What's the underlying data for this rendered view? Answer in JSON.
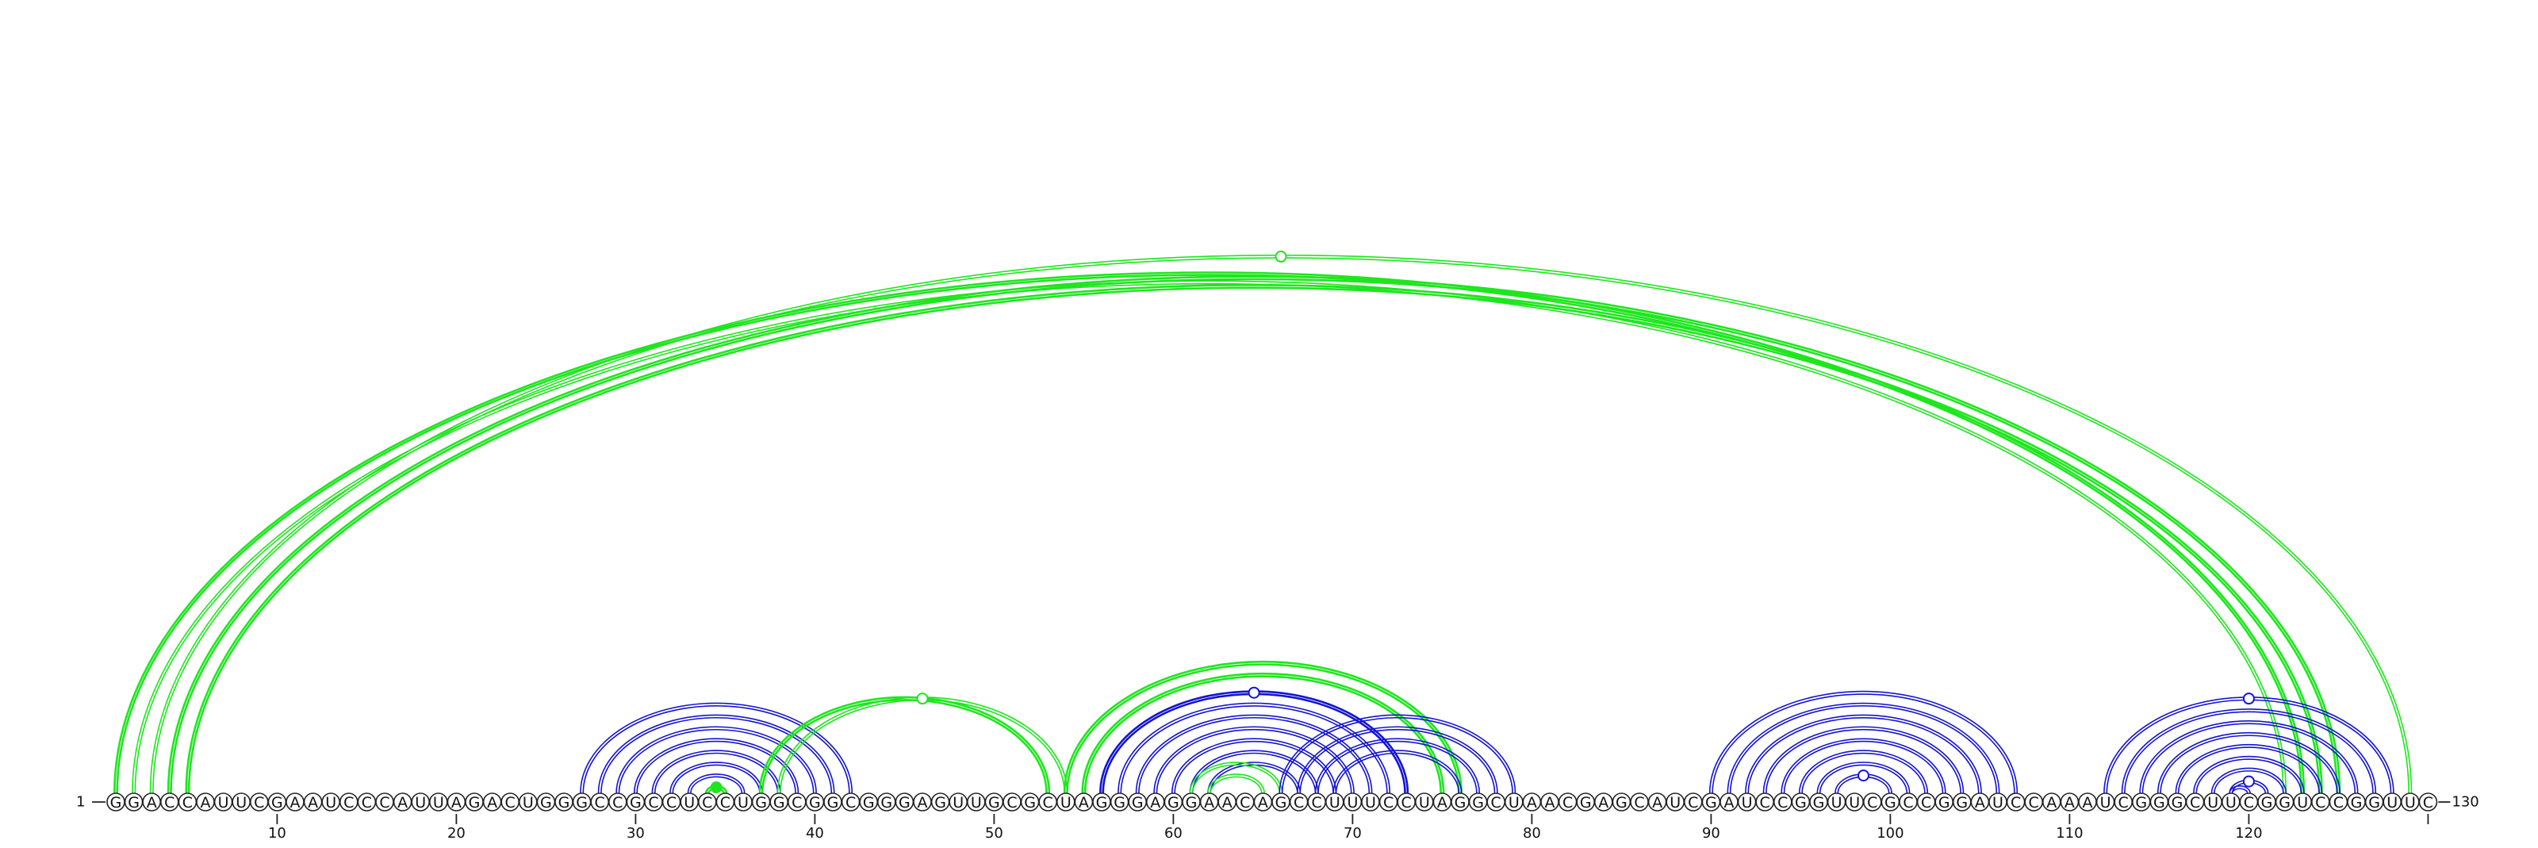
{
  "sequence": {
    "letters": "GGACCAUUCGAAUCCCAUUAGACUGGGCCGCCUCCUGGCGGCGGGAGUUGCGCUAGGGAGGAACAGCCUUUCCUAGGCUAACGAGCAUCGAUCCGGUUCGCCGGAUCCAAAUCGGGCUUCGGUCCGGUUC",
    "start_label": "1",
    "end_label": "130",
    "first_index": 1,
    "last_index": 130
  },
  "ticks": [
    {
      "index": 10,
      "label": "10"
    },
    {
      "index": 20,
      "label": "20"
    },
    {
      "index": 30,
      "label": "30"
    },
    {
      "index": 40,
      "label": "40"
    },
    {
      "index": 50,
      "label": "50"
    },
    {
      "index": 60,
      "label": "60"
    },
    {
      "index": 70,
      "label": "70"
    },
    {
      "index": 80,
      "label": "80"
    },
    {
      "index": 90,
      "label": "90"
    },
    {
      "index": 100,
      "label": "100"
    },
    {
      "index": 110,
      "label": "110"
    },
    {
      "index": 120,
      "label": "120"
    },
    {
      "index": 130,
      "label": ""
    }
  ],
  "colors": {
    "green": "#1ee61e",
    "blue": "#1414d2"
  },
  "arc_groups": [
    {
      "name": "long-range",
      "color": "green",
      "pairs": [
        [
          1,
          123
        ],
        [
          2,
          122
        ],
        [
          3,
          129
        ],
        [
          4,
          125
        ],
        [
          5,
          124
        ]
      ],
      "heavy": [
        0,
        3,
        4
      ],
      "marker": {
        "type": "open",
        "pair": 2
      }
    },
    {
      "name": "helix-a",
      "color": "blue",
      "pairs": [
        [
          27,
          42
        ],
        [
          28,
          41
        ],
        [
          29,
          40
        ],
        [
          30,
          39
        ],
        [
          31,
          38
        ],
        [
          32,
          37
        ],
        [
          33,
          36
        ]
      ],
      "heavy": [],
      "marker": null
    },
    {
      "name": "helix-a-inner",
      "color": "green",
      "pairs": [
        [
          34,
          35
        ]
      ],
      "heavy": [
        0
      ],
      "marker": {
        "type": "filled",
        "pair": 0
      }
    },
    {
      "name": "pseudoknot-a",
      "color": "green",
      "pairs": [
        [
          37,
          53
        ],
        [
          38,
          54
        ]
      ],
      "heavy": [
        0
      ],
      "marker": {
        "type": "open",
        "pair": 1
      }
    },
    {
      "name": "helix-b",
      "color": "blue",
      "pairs": [
        [
          56,
          73
        ],
        [
          57,
          72
        ],
        [
          58,
          71
        ],
        [
          59,
          70
        ],
        [
          60,
          69
        ],
        [
          61,
          68
        ],
        [
          62,
          67
        ]
      ],
      "heavy": [
        0
      ],
      "marker": {
        "type": "open",
        "pair": 0
      }
    },
    {
      "name": "pseudoknot-b",
      "color": "green",
      "pairs": [
        [
          54,
          76
        ],
        [
          55,
          75
        ],
        [
          61,
          66
        ],
        [
          62,
          65
        ]
      ],
      "heavy": [
        0,
        1
      ],
      "marker": null
    },
    {
      "name": "helix-c",
      "color": "blue",
      "pairs": [
        [
          66,
          79
        ],
        [
          67,
          78
        ],
        [
          68,
          77
        ],
        [
          69,
          76
        ]
      ],
      "heavy": [],
      "marker": null
    },
    {
      "name": "helix-d",
      "color": "blue",
      "pairs": [
        [
          90,
          107
        ],
        [
          91,
          106
        ],
        [
          92,
          105
        ],
        [
          93,
          104
        ],
        [
          94,
          103
        ],
        [
          95,
          102
        ],
        [
          96,
          101
        ],
        [
          97,
          100
        ]
      ],
      "heavy": [],
      "marker": {
        "type": "open",
        "pair": 7
      }
    },
    {
      "name": "helix-e",
      "color": "blue",
      "pairs": [
        [
          112,
          128
        ],
        [
          113,
          127
        ],
        [
          114,
          126
        ],
        [
          115,
          125
        ],
        [
          116,
          124
        ],
        [
          117,
          123
        ],
        [
          118,
          122
        ]
      ],
      "heavy": [],
      "marker": {
        "type": "open",
        "pair": 0
      }
    },
    {
      "name": "helix-e-inner",
      "color": "blue",
      "pairs": [
        [
          119,
          121
        ],
        [
          119,
          120
        ]
      ],
      "heavy": [],
      "marker": {
        "type": "open",
        "pair": 0
      }
    }
  ]
}
